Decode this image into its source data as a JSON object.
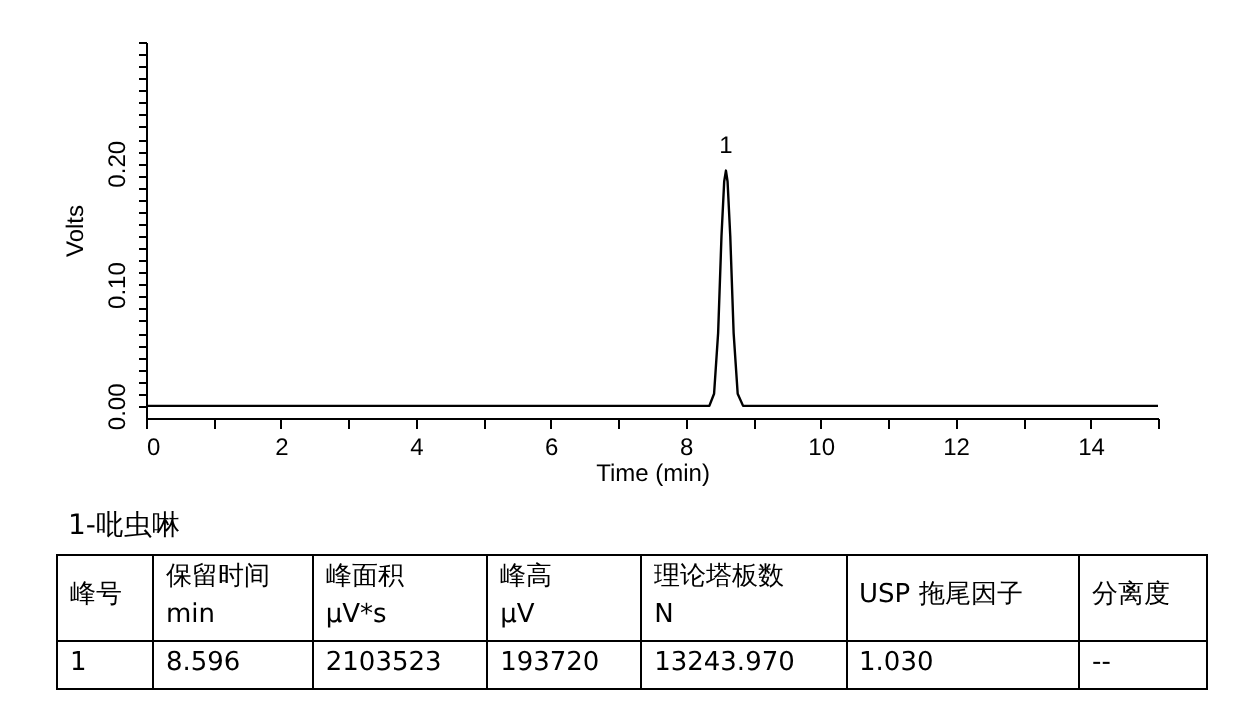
{
  "chart_data": {
    "type": "line",
    "xlabel": "Time (min)",
    "ylabel": "Volts",
    "x": [
      0,
      8.35,
      8.42,
      8.48,
      8.53,
      8.57,
      8.596,
      8.62,
      8.66,
      8.71,
      8.77,
      8.85,
      15
    ],
    "series": [
      {
        "color": "#000000",
        "values": [
          0,
          0,
          0.01,
          0.06,
          0.14,
          0.185,
          0.194,
          0.185,
          0.14,
          0.06,
          0.01,
          0,
          0
        ]
      }
    ],
    "xlim": [
      0,
      15
    ],
    "xticks": [
      0,
      {
        "value": 1,
        "label": null
      },
      2,
      {
        "value": 3,
        "label": null
      },
      4,
      {
        "value": 5,
        "label": null
      },
      6,
      {
        "value": 7,
        "label": null
      },
      8,
      {
        "value": 9,
        "label": null
      },
      10,
      {
        "value": 11,
        "label": null
      },
      12,
      {
        "value": 13,
        "label": null
      },
      14,
      {
        "value": 15,
        "label": null
      }
    ],
    "ylim": [
      -0.01,
      0.3
    ],
    "yticks": [
      {
        "value": 0,
        "label": "0.00"
      },
      {
        "value": 0.01,
        "label": null
      },
      {
        "value": 0.02,
        "label": null
      },
      {
        "value": 0.03,
        "label": null
      },
      {
        "value": 0.04,
        "label": null
      },
      {
        "value": 0.05,
        "label": null
      },
      {
        "value": 0.06,
        "label": null
      },
      {
        "value": 0.07,
        "label": null
      },
      {
        "value": 0.08,
        "label": null
      },
      {
        "value": 0.09,
        "label": null
      },
      {
        "value": 0.1,
        "label": "0.10"
      },
      {
        "value": 0.11,
        "label": null
      },
      {
        "value": 0.12,
        "label": null
      },
      {
        "value": 0.13,
        "label": null
      },
      {
        "value": 0.14,
        "label": null
      },
      {
        "value": 0.15,
        "label": null
      },
      {
        "value": 0.16,
        "label": null
      },
      {
        "value": 0.17,
        "label": null
      },
      {
        "value": 0.18,
        "label": null
      },
      {
        "value": 0.19,
        "label": null
      },
      {
        "value": 0.2,
        "label": "0.20"
      },
      {
        "value": 0.21,
        "label": null
      },
      {
        "value": 0.22,
        "label": null
      },
      {
        "value": 0.23,
        "label": null
      },
      {
        "value": 0.24,
        "label": null
      },
      {
        "value": 0.25,
        "label": null
      },
      {
        "value": 0.26,
        "label": null
      },
      {
        "value": 0.27,
        "label": null
      },
      {
        "value": 0.28,
        "label": null
      },
      {
        "value": 0.29,
        "label": null
      },
      {
        "value": 0.3,
        "label": null
      }
    ],
    "grid": false,
    "line_style": "solid",
    "annotations": [
      {
        "text": "1",
        "x": 8.596,
        "y": 0.194
      },
      "1-吡虫啉",
      "峰号",
      "保留时间\nmin",
      "峰面积\nµV*s",
      "峰高\nµV",
      "理论塔板数\nN",
      "USP 拖尾因子",
      "分离度",
      "1",
      "8.596",
      "2103523",
      "193720",
      "13243.970",
      "1.030",
      "--"
    ]
  }
}
